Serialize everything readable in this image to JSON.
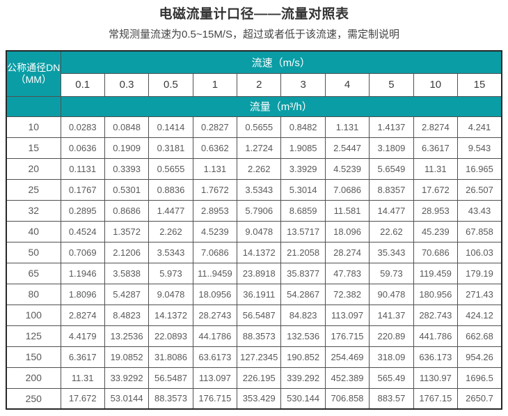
{
  "page": {
    "title": "电磁流量计口径——流量对照表",
    "subtitle": "常规测量流速为0.5~15M/S，超过或者低于该流速，需定制说明"
  },
  "colors": {
    "header_teal": "#0b9da5",
    "inner_border": "#4f4f4f",
    "outer_border": "#262626",
    "data_text": "#58595b"
  },
  "chart_data": {
    "type": "table",
    "title": "电磁流量计口径——流量对照表",
    "corner_header": {
      "line1": "公称通径DN",
      "line2": "（MM）"
    },
    "velocity_header": "流速（m/s）",
    "flow_header": "流量（m³/h）",
    "velocities_mps": [
      "0.1",
      "0.3",
      "0.5",
      "1",
      "2",
      "3",
      "4",
      "5",
      "10",
      "15"
    ],
    "rows": [
      {
        "dn": "10",
        "flows_m3h": [
          "0.0283",
          "0.0848",
          "0.1414",
          "0.2827",
          "0.5655",
          "0.8482",
          "1.131",
          "1.4137",
          "2.8274",
          "4.241"
        ]
      },
      {
        "dn": "15",
        "flows_m3h": [
          "0.0636",
          "0.1909",
          "0.3181",
          "0.6362",
          "1.2724",
          "1.9085",
          "2.5447",
          "3.1809",
          "6.3617",
          "9.543"
        ]
      },
      {
        "dn": "20",
        "flows_m3h": [
          "0.1131",
          "0.3393",
          "0.5655",
          "1.131",
          "2.262",
          "3.3929",
          "4.5239",
          "5.6549",
          "11.31",
          "16.965"
        ]
      },
      {
        "dn": "25",
        "flows_m3h": [
          "0.1767",
          "0.5301",
          "0.8836",
          "1.7672",
          "3.5343",
          "5.3014",
          "7.0686",
          "8.8357",
          "17.672",
          "26.507"
        ]
      },
      {
        "dn": "32",
        "flows_m3h": [
          "0.2895",
          "0.8686",
          "1.4477",
          "2.8953",
          "5.7906",
          "8.6859",
          "11.581",
          "14.477",
          "28.953",
          "43.43"
        ]
      },
      {
        "dn": "40",
        "flows_m3h": [
          "0.4524",
          "1.3572",
          "2.262",
          "4.5239",
          "9.0478",
          "13.5717",
          "18.096",
          "22.62",
          "45.239",
          "67.858"
        ]
      },
      {
        "dn": "50",
        "flows_m3h": [
          "0.7069",
          "2.1206",
          "3.5343",
          "7.0686",
          "14.1372",
          "21.2058",
          "28.274",
          "35.343",
          "70.686",
          "106.03"
        ]
      },
      {
        "dn": "65",
        "flows_m3h": [
          "1.1946",
          "3.5838",
          "5.973",
          "11..9459",
          "23.8918",
          "35.8377",
          "47.783",
          "59.73",
          "119.459",
          "179.19"
        ]
      },
      {
        "dn": "80",
        "flows_m3h": [
          "1.8096",
          "5.4287",
          "9.0478",
          "18.0956",
          "36.1911",
          "54.2867",
          "72.382",
          "90.478",
          "180.956",
          "271.43"
        ]
      },
      {
        "dn": "100",
        "flows_m3h": [
          "2.8274",
          "8.4823",
          "14.1372",
          "28.2743",
          "56.5487",
          "84.823",
          "113.097",
          "141.37",
          "282.743",
          "424.12"
        ]
      },
      {
        "dn": "125",
        "flows_m3h": [
          "4.4179",
          "13.2536",
          "22.0893",
          "44.1786",
          "88.3573",
          "132.536",
          "176.715",
          "220.89",
          "441.786",
          "662.68"
        ]
      },
      {
        "dn": "150",
        "flows_m3h": [
          "6.3617",
          "19.0852",
          "31.8086",
          "63.6173",
          "127.2345",
          "190.852",
          "254.469",
          "318.09",
          "636.173",
          "954.26"
        ]
      },
      {
        "dn": "200",
        "flows_m3h": [
          "11.31",
          "33.9292",
          "56.5487",
          "113.097",
          "226.195",
          "339.292",
          "452.389",
          "565.49",
          "1130.97",
          "1696.5"
        ]
      },
      {
        "dn": "250",
        "flows_m3h": [
          "17.672",
          "53.0144",
          "88.3573",
          "176.715",
          "353.429",
          "530.144",
          "706.858",
          "883.57",
          "1767.15",
          "2650.7"
        ]
      }
    ]
  }
}
